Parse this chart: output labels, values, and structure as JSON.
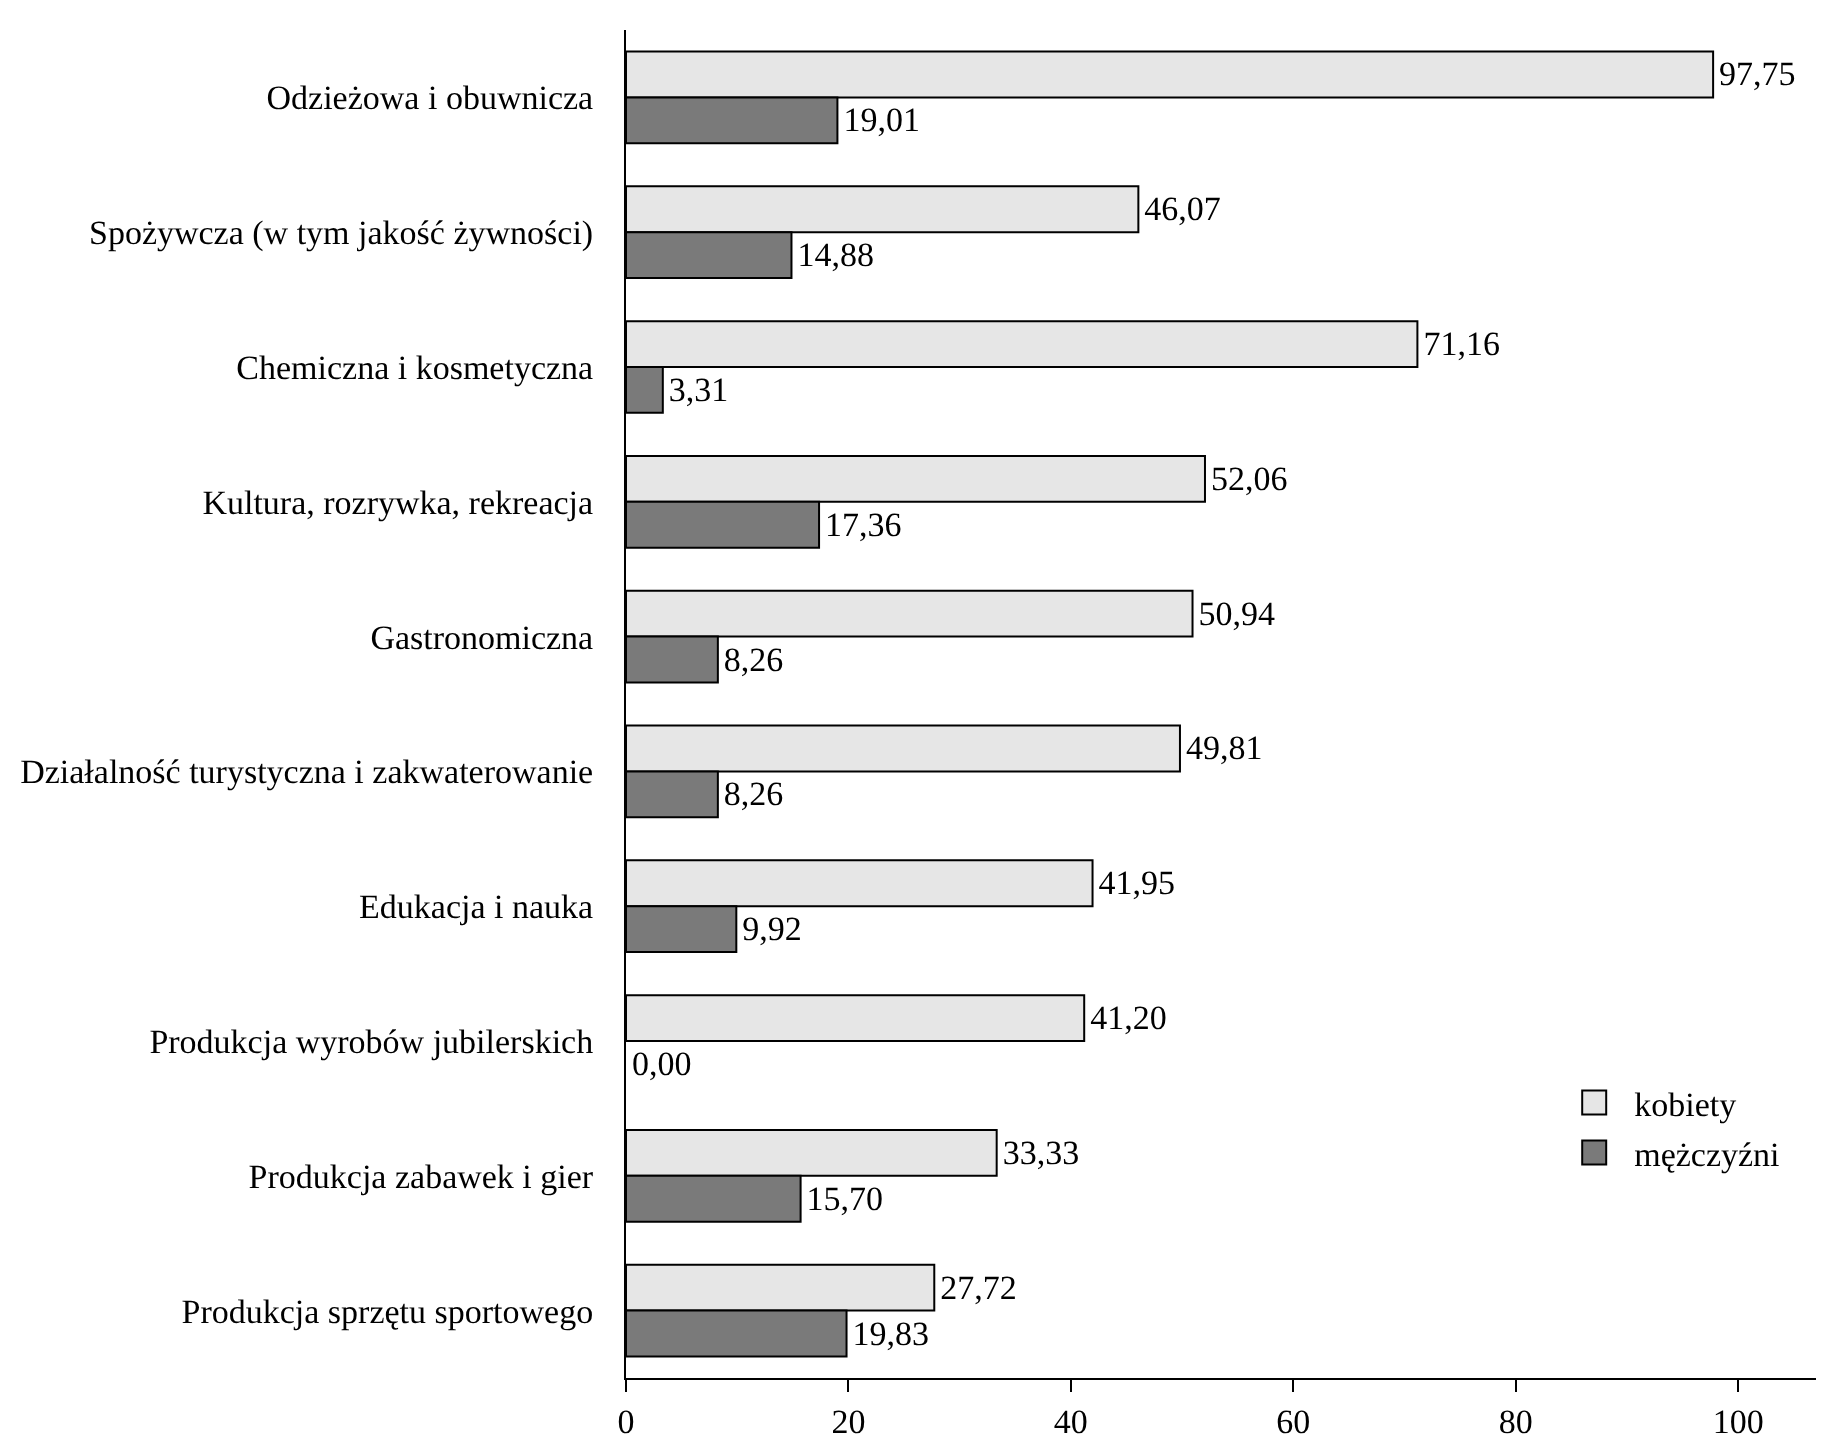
{
  "chart_data": {
    "type": "bar",
    "orientation": "horizontal",
    "categories": [
      "Odzieżowa i obuwnicza",
      "Spożywcza (w tym jakość żywności)",
      "Chemiczna i kosmetyczna",
      "Kultura, rozrywka, rekreacja",
      "Gastronomiczna",
      "Działalność turystyczna i zakwaterowanie",
      "Edukacja i nauka",
      "Produkcja wyrobów jubilerskich",
      "Produkcja zabawek i gier",
      "Produkcja sprzętu sportowego"
    ],
    "series": [
      {
        "name": "kobiety",
        "color": "#e6e6e6",
        "values": [
          97.75,
          46.07,
          71.16,
          52.06,
          50.94,
          49.81,
          41.95,
          41.2,
          33.33,
          27.72
        ],
        "value_labels": [
          "97,75",
          "46,07",
          "71,16",
          "52,06",
          "50,94",
          "49,81",
          "41,95",
          "41,20",
          "33,33",
          "27,72"
        ]
      },
      {
        "name": "mężczyźni",
        "color": "#7a7a7a",
        "values": [
          19.01,
          14.88,
          3.31,
          17.36,
          8.26,
          8.26,
          9.92,
          0,
          15.7,
          19.83
        ],
        "value_labels": [
          "19,01",
          "14,88",
          "3,31",
          "17,36",
          "8,26",
          "8,26",
          "9,92",
          "0,00",
          "15,70",
          "19,83"
        ]
      }
    ],
    "xlim": [
      0,
      107
    ],
    "xticks": [
      0,
      20,
      40,
      60,
      80,
      100
    ],
    "grid": false,
    "legend": "bottom right"
  }
}
